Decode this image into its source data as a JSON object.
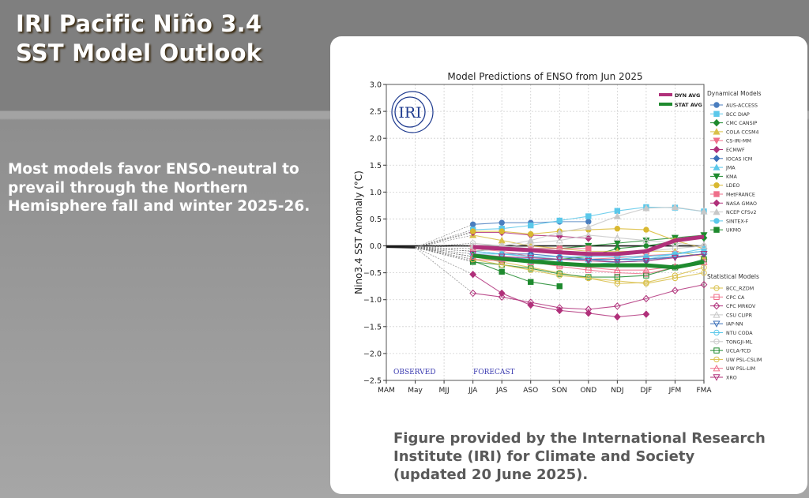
{
  "slide": {
    "title_lines": [
      "IRI Pacific Niño 3.4",
      "SST Model Outlook"
    ],
    "bullet": "Most models favor ENSO-neutral to prevail through the Northern Hemisphere fall and winter 2025-26.",
    "caption_lines": [
      "Figure provided by the International Research",
      "Institute (IRI) for Climate and Society",
      "(updated 20 June 2025)."
    ],
    "logo_text": "IRI"
  },
  "chart_data": {
    "type": "line",
    "title": "Model Predictions of ENSO from Jun 2025",
    "xlabel": "",
    "ylabel": "Nino3.4 SST Anomaly (°C)",
    "ylim": [
      -2.5,
      3.0
    ],
    "yticks": [
      "3.0",
      "2.5",
      "2.0",
      "1.5",
      "1.0",
      "0.5",
      "0.0",
      "−0.5",
      "−1.0",
      "−1.5",
      "−2.0",
      "−2.5"
    ],
    "ytick_values": [
      3.0,
      2.5,
      2.0,
      1.5,
      1.0,
      0.5,
      0.0,
      -0.5,
      -1.0,
      -1.5,
      -2.0,
      -2.5
    ],
    "categories": [
      "MAM",
      "May",
      "MJJ",
      "JJA",
      "JAS",
      "ASO",
      "SON",
      "OND",
      "NDJ",
      "DJF",
      "JFM",
      "FMA"
    ],
    "grid": true,
    "annotations": {
      "observed": "OBSERVED",
      "forecast": "FORECAST"
    },
    "observed": [
      -0.02,
      -0.03
    ],
    "avg_legend": [
      {
        "name": "DYN AVG",
        "color": "#b0307a"
      },
      {
        "name": "STAT AVG",
        "color": "#1e8a2e"
      }
    ],
    "legend_placement": "right",
    "dynamical_title": "Dynamical Models",
    "statistical_title": "Statistical Models",
    "dynamical": [
      {
        "name": "AUS-ACCESS",
        "color": "#4a7ebf",
        "marker": "circle",
        "values": [
          0.4,
          0.43,
          0.43,
          0.45,
          0.45
        ]
      },
      {
        "name": "BCC DIAP",
        "color": "#5bc8ea",
        "marker": "square",
        "values": [
          0.3,
          0.32,
          0.38,
          0.47,
          0.55,
          0.65,
          0.72,
          0.71,
          0.64
        ]
      },
      {
        "name": "CMC CANSIP",
        "color": "#1e8a2e",
        "marker": "diamond",
        "values": [
          -0.2,
          -0.25,
          -0.27,
          -0.25,
          -0.2,
          -0.05,
          0.0,
          0.08,
          0.15
        ]
      },
      {
        "name": "COLA CCSM4",
        "color": "#d9c04a",
        "marker": "triangle",
        "values": [
          0.2,
          0.1,
          0.0,
          -0.05,
          -0.1,
          -0.1,
          -0.1,
          -0.1,
          -0.2
        ]
      },
      {
        "name": "CS-IRI-MM",
        "color": "#ef6f8a",
        "marker": "triangle-down",
        "values": [
          -0.05,
          -0.1,
          -0.2,
          -0.25,
          -0.25,
          -0.22,
          -0.18,
          -0.15,
          -0.1
        ]
      },
      {
        "name": "ECMWF",
        "color": "#b0307a",
        "marker": "diamond",
        "values": [
          0.25,
          0.25,
          0.2,
          0.18,
          0.14
        ]
      },
      {
        "name": "IOCAS ICM",
        "color": "#3b6fb8",
        "marker": "diamond",
        "values": [
          -0.1,
          -0.15,
          -0.15,
          -0.2,
          -0.25,
          -0.3,
          -0.28,
          -0.2,
          -0.15
        ]
      },
      {
        "name": "JMA",
        "color": "#5bc8ea",
        "marker": "triangle",
        "values": [
          -0.1,
          -0.15,
          -0.2,
          -0.25,
          -0.25,
          -0.25,
          -0.2,
          -0.15,
          -0.1
        ]
      },
      {
        "name": "KMA",
        "color": "#1e8a2e",
        "marker": "triangle-down",
        "values": [
          -0.1,
          -0.05,
          -0.05,
          -0.05,
          0.0,
          0.05,
          0.1,
          0.15,
          0.2
        ]
      },
      {
        "name": "LDEO",
        "color": "#d9b830",
        "marker": "circle",
        "values": [
          0.27,
          0.27,
          0.22,
          0.27,
          0.3,
          0.32,
          0.3,
          0.1,
          -0.05
        ]
      },
      {
        "name": "MetFRANCE",
        "color": "#ef6f8a",
        "marker": "square",
        "values": [
          -0.05,
          -0.05,
          -0.05,
          -0.05,
          -0.05
        ]
      },
      {
        "name": "NASA GMAO",
        "color": "#b0307a",
        "marker": "diamond",
        "values": [
          -0.53,
          -0.88,
          -1.1,
          -1.2,
          -1.25,
          -1.32,
          -1.27
        ]
      },
      {
        "name": "NCEP CFSv2",
        "color": "#c8c8c8",
        "marker": "triangle",
        "values": [
          0.0,
          0.0,
          0.1,
          0.25,
          0.35,
          0.55,
          0.7,
          0.72,
          0.64
        ]
      },
      {
        "name": "SINTEX-F",
        "color": "#5bc8ea",
        "marker": "circle",
        "values": [
          -0.2,
          -0.25,
          -0.3,
          -0.3,
          -0.35,
          -0.3,
          -0.25,
          -0.15,
          -0.05
        ]
      },
      {
        "name": "UKMO",
        "color": "#1e8a2e",
        "marker": "square",
        "values": [
          -0.28,
          -0.48,
          -0.67,
          -0.75
        ]
      }
    ],
    "statistical": [
      {
        "name": "BCC_RZDM",
        "color": "#d9c04a",
        "marker": "circle-open",
        "values": [
          -0.2,
          -0.3,
          -0.4,
          -0.5,
          -0.6,
          -0.65,
          -0.7,
          -0.6,
          -0.5
        ]
      },
      {
        "name": "CPC CA",
        "color": "#ef6f8a",
        "marker": "square-open",
        "values": [
          -0.25,
          -0.28,
          -0.3,
          -0.38,
          -0.45,
          -0.5,
          -0.52,
          -0.4,
          -0.3
        ]
      },
      {
        "name": "CPC MRKOV",
        "color": "#b0307a",
        "marker": "diamond-open",
        "values": [
          -0.88,
          -0.95,
          -1.05,
          -1.15,
          -1.18,
          -1.12,
          -0.98,
          -0.83,
          -0.72
        ]
      },
      {
        "name": "CSU CLIPR",
        "color": "#c8c8c8",
        "marker": "triangle-open",
        "values": [
          -0.1,
          -0.05,
          0.05,
          0.1,
          0.2,
          0.15,
          0.1,
          0.05,
          0.0
        ]
      },
      {
        "name": "IAP-NN",
        "color": "#3b6fb8",
        "marker": "triangle-down-open",
        "values": [
          -0.2,
          -0.2,
          -0.25,
          -0.25,
          -0.25,
          -0.25,
          -0.25,
          -0.2,
          -0.15
        ]
      },
      {
        "name": "NTU CODA",
        "color": "#5bc8ea",
        "marker": "circle-open",
        "values": [
          -0.15,
          -0.15,
          -0.2,
          -0.2,
          -0.2,
          -0.2,
          -0.2,
          -0.15,
          -0.1
        ]
      },
      {
        "name": "TONGJI-ML",
        "color": "#c8c8c8",
        "marker": "circle-open",
        "values": [
          0.05,
          0.0,
          -0.05,
          -0.1,
          -0.15,
          -0.15,
          -0.1,
          -0.05,
          0.0
        ]
      },
      {
        "name": "UCLA-TCD",
        "color": "#1e8a2e",
        "marker": "square-open",
        "values": [
          -0.3,
          -0.35,
          -0.42,
          -0.52,
          -0.58,
          -0.58,
          -0.55,
          -0.4,
          -0.25
        ]
      },
      {
        "name": "UW PSL-CSLIM",
        "color": "#d9c04a",
        "marker": "circle-open",
        "values": [
          -0.25,
          -0.35,
          -0.45,
          -0.55,
          -0.6,
          -0.7,
          -0.68,
          -0.55,
          -0.4
        ]
      },
      {
        "name": "UW PSL-LIM",
        "color": "#ef6f8a",
        "marker": "triangle-open",
        "values": [
          -0.2,
          -0.25,
          -0.3,
          -0.35,
          -0.4,
          -0.45,
          -0.45,
          -0.38,
          -0.3
        ]
      },
      {
        "name": "XRO",
        "color": "#b0307a",
        "marker": "triangle-down-open",
        "values": [
          -0.15,
          -0.2,
          -0.22,
          -0.25,
          -0.28,
          -0.3,
          -0.28,
          -0.22,
          -0.15
        ]
      }
    ],
    "dyn_avg": [
      -0.02,
      -0.05,
      -0.08,
      -0.12,
      -0.15,
      -0.15,
      -0.1,
      0.1,
      0.17
    ],
    "stat_avg": [
      -0.18,
      -0.24,
      -0.29,
      -0.33,
      -0.36,
      -0.36,
      -0.36,
      -0.4,
      -0.3
    ],
    "zero_line": 0.0
  }
}
